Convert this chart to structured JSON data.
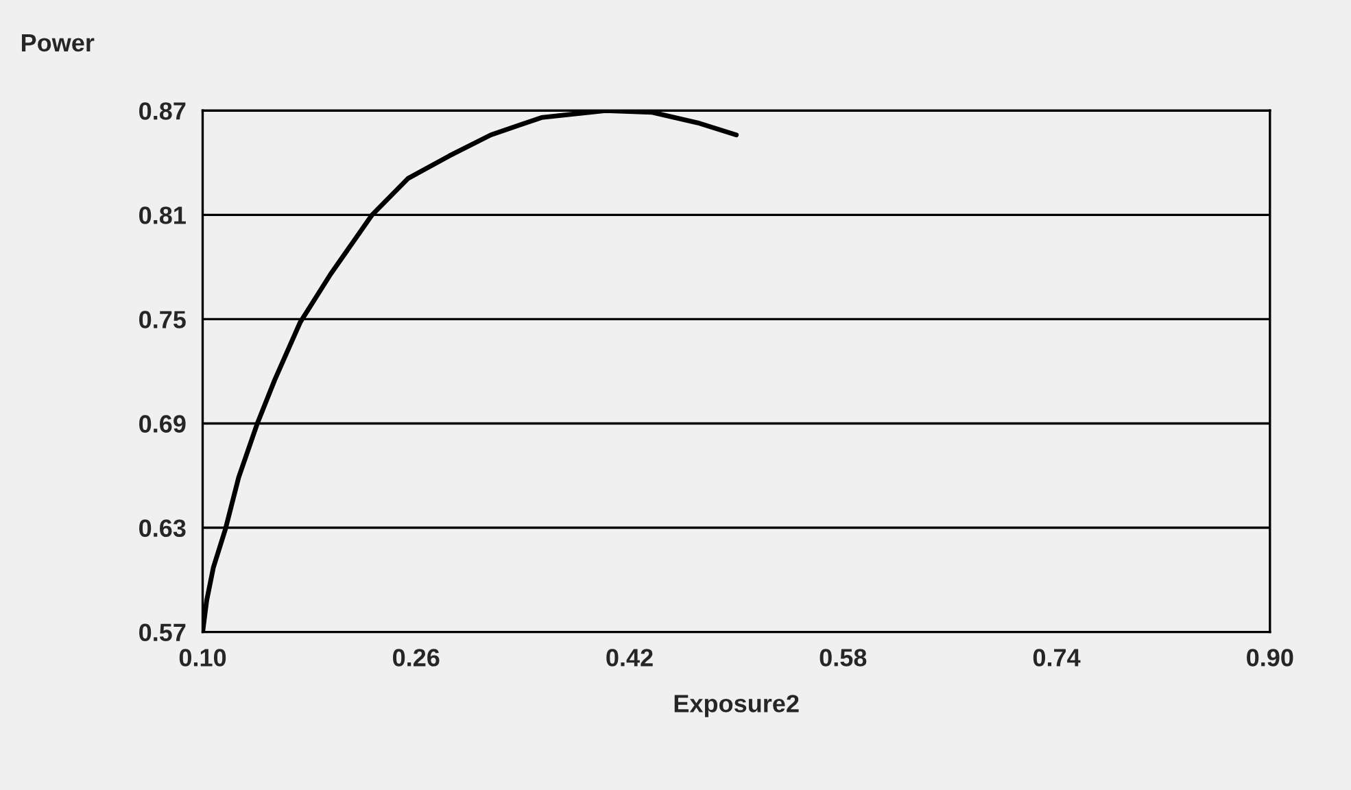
{
  "chart_data": {
    "type": "line",
    "ylabel": "Power",
    "xlabel": "Exposure2",
    "series": [
      {
        "color": "#000000",
        "x": [
          0.1,
          0.103,
          0.108,
          0.117,
          0.127,
          0.141,
          0.154,
          0.173,
          0.196,
          0.227,
          0.254,
          0.285,
          0.316,
          0.354,
          0.402,
          0.437,
          0.471,
          0.5
        ],
        "values": [
          0.57,
          0.588,
          0.607,
          0.629,
          0.659,
          0.69,
          0.715,
          0.748,
          0.776,
          0.81,
          0.831,
          0.844,
          0.856,
          0.866,
          0.87,
          0.869,
          0.863,
          0.856
        ]
      }
    ],
    "xlim": [
      0.1,
      0.9
    ],
    "xticks": [
      {
        "value": 0.1,
        "label": "0.10"
      },
      0.26,
      0.42,
      0.58,
      0.74,
      {
        "value": 0.9,
        "label": "0.90"
      }
    ],
    "ylim": [
      0.57,
      0.87
    ],
    "yticks": [
      0.57,
      0.63,
      0.69,
      0.75,
      0.81,
      0.87
    ],
    "grid": "y",
    "legend": false,
    "marker": "none",
    "line_style": "solid"
  }
}
